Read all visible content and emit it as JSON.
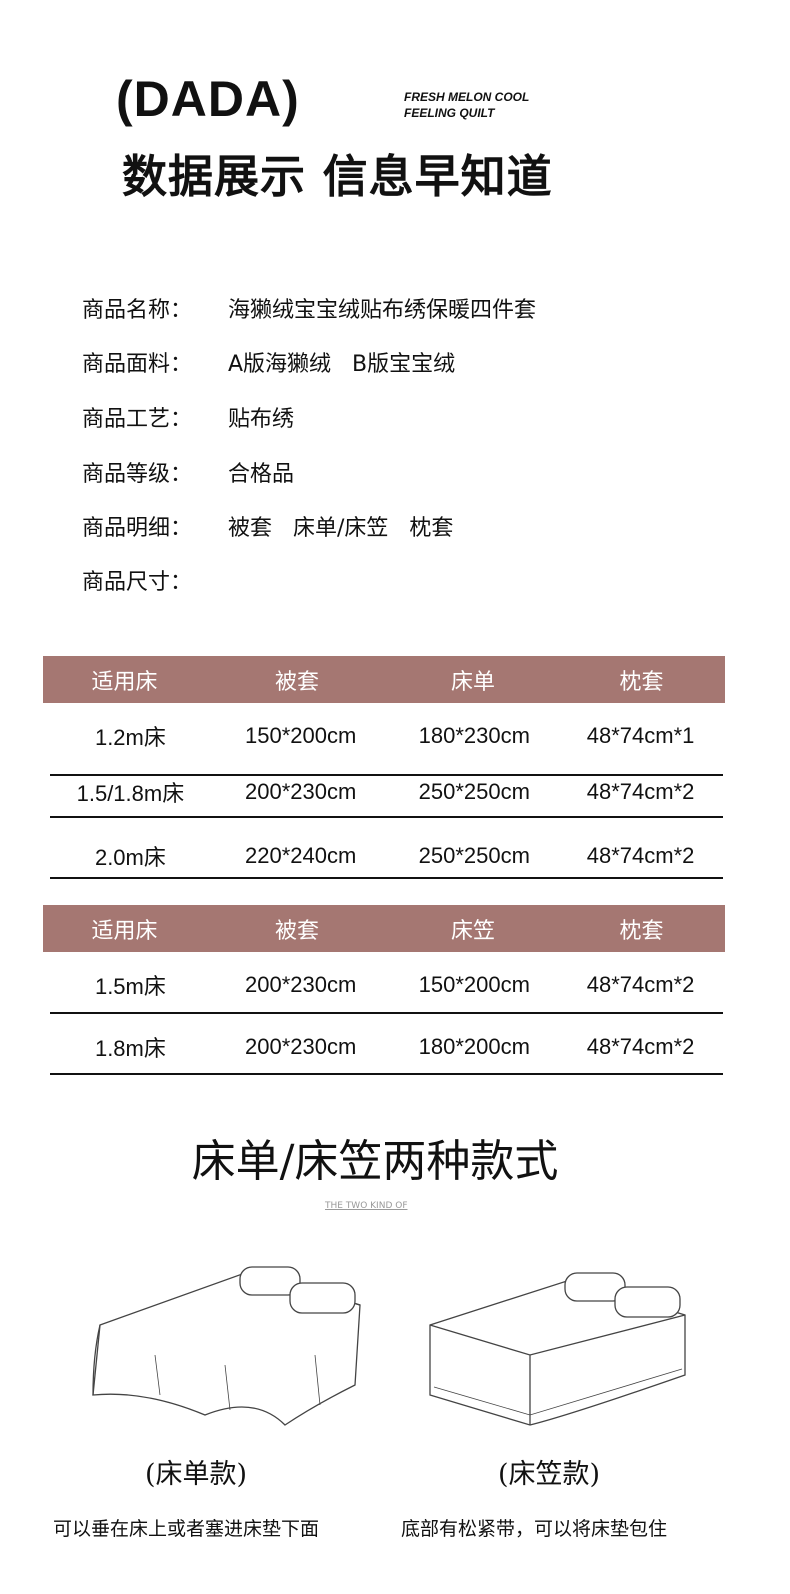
{
  "header": {
    "brand": "(DADA)",
    "tagline_1": "FRESH MELON COOL",
    "tagline_2": "FEELING QUILT",
    "title": "数据展示 信息早知道"
  },
  "info": [
    {
      "label": "商品名称：",
      "value": "海獭绒宝宝绒贴布绣保暖四件套"
    },
    {
      "label": "商品面料：",
      "value": "A版海獭绒   B版宝宝绒"
    },
    {
      "label": "商品工艺：",
      "value": "贴布绣"
    },
    {
      "label": "商品等级：",
      "value": "合格品"
    },
    {
      "label": "商品明细：",
      "value": "被套   床单/床笠   枕套"
    },
    {
      "label": "商品尺寸：",
      "value": ""
    }
  ],
  "table1": {
    "headers": [
      "适用床",
      "被套",
      "床单",
      "枕套"
    ],
    "rows": [
      [
        "1.2m床",
        "150*200cm",
        "180*230cm",
        "48*74cm*1"
      ],
      [
        "1.5/1.8m床",
        "200*230cm",
        "250*250cm",
        "48*74cm*2"
      ],
      [
        "2.0m床",
        "220*240cm",
        "250*250cm",
        "48*74cm*2"
      ]
    ]
  },
  "table2": {
    "headers": [
      "适用床",
      "被套",
      "床笠",
      "枕套"
    ],
    "rows": [
      [
        "1.5m床",
        "200*230cm",
        "150*200cm",
        "48*74cm*2"
      ],
      [
        "1.8m床",
        "200*230cm",
        "180*200cm",
        "48*74cm*2"
      ]
    ]
  },
  "styles": {
    "heading": "床单/床笠两种款式",
    "subheading": "THE TWO KIND OF",
    "items": [
      {
        "label": "(床单款)",
        "caption": "可以垂在床上或者塞进床垫下面"
      },
      {
        "label": "(床笠款)",
        "caption": "底部有松紧带，可以将床垫包住"
      }
    ]
  },
  "colors": {
    "table_header": "#a57772"
  }
}
